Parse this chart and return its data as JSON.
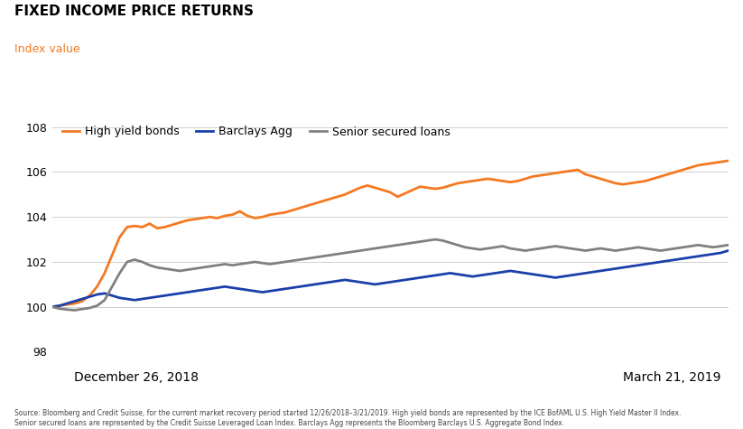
{
  "title": "FIXED INCOME PRICE RETURNS",
  "ylabel": "Index value",
  "ylabel_color": "#F47920",
  "ylim": [
    98,
    108.5
  ],
  "yticks": [
    98,
    100,
    102,
    104,
    106,
    108
  ],
  "xlabel_left": "December 26, 2018",
  "xlabel_right": "March 21, 2019",
  "source_text": "Source: Bloomberg and Credit Suisse, for the current market recovery period started 12/26/2018–3/21/2019. High yield bonds are represented by the ICE BofAML U.S. High Yield Master II Index.\nSenior secured loans are represented by the Credit Suisse Leveraged Loan Index. Barclays Agg represents the Bloomberg Barclays U.S. Aggregate Bond Index.",
  "legend_entries": [
    "High yield bonds",
    "Barclays Agg",
    "Senior secured loans"
  ],
  "legend_colors": [
    "#F47920",
    "#1A3FAA",
    "#808080"
  ],
  "line_colors": [
    "#F47920",
    "#1A3FAA",
    "#808080"
  ],
  "high_yield": [
    100.0,
    100.05,
    100.1,
    100.15,
    100.25,
    100.5,
    100.9,
    101.5,
    102.3,
    103.1,
    103.55,
    103.6,
    103.55,
    103.7,
    103.5,
    103.55,
    103.65,
    103.75,
    103.85,
    103.9,
    103.95,
    104.0,
    103.95,
    104.05,
    104.1,
    104.25,
    104.05,
    103.95,
    104.0,
    104.1,
    104.15,
    104.2,
    104.3,
    104.4,
    104.5,
    104.6,
    104.7,
    104.8,
    104.9,
    105.0,
    105.15,
    105.3,
    105.4,
    105.3,
    105.2,
    105.1,
    104.9,
    105.05,
    105.2,
    105.35,
    105.3,
    105.25,
    105.3,
    105.4,
    105.5,
    105.55,
    105.6,
    105.65,
    105.7,
    105.65,
    105.6,
    105.55,
    105.6,
    105.7,
    105.8,
    105.85,
    105.9,
    105.95,
    106.0,
    106.05,
    106.1,
    105.9,
    105.8,
    105.7,
    105.6,
    105.5,
    105.45,
    105.5,
    105.55,
    105.6,
    105.7,
    105.8,
    105.9,
    106.0,
    106.1,
    106.2,
    106.3,
    106.35,
    106.4,
    106.45,
    106.5
  ],
  "barclays": [
    100.0,
    100.05,
    100.15,
    100.25,
    100.35,
    100.45,
    100.55,
    100.6,
    100.5,
    100.4,
    100.35,
    100.3,
    100.35,
    100.4,
    100.45,
    100.5,
    100.55,
    100.6,
    100.65,
    100.7,
    100.75,
    100.8,
    100.85,
    100.9,
    100.85,
    100.8,
    100.75,
    100.7,
    100.65,
    100.7,
    100.75,
    100.8,
    100.85,
    100.9,
    100.95,
    101.0,
    101.05,
    101.1,
    101.15,
    101.2,
    101.15,
    101.1,
    101.05,
    101.0,
    101.05,
    101.1,
    101.15,
    101.2,
    101.25,
    101.3,
    101.35,
    101.4,
    101.45,
    101.5,
    101.45,
    101.4,
    101.35,
    101.4,
    101.45,
    101.5,
    101.55,
    101.6,
    101.55,
    101.5,
    101.45,
    101.4,
    101.35,
    101.3,
    101.35,
    101.4,
    101.45,
    101.5,
    101.55,
    101.6,
    101.65,
    101.7,
    101.75,
    101.8,
    101.85,
    101.9,
    101.95,
    102.0,
    102.05,
    102.1,
    102.15,
    102.2,
    102.25,
    102.3,
    102.35,
    102.4,
    102.5
  ],
  "senior_loans": [
    100.0,
    99.92,
    99.88,
    99.85,
    99.9,
    99.95,
    100.05,
    100.3,
    100.9,
    101.5,
    102.0,
    102.1,
    102.0,
    101.85,
    101.75,
    101.7,
    101.65,
    101.6,
    101.65,
    101.7,
    101.75,
    101.8,
    101.85,
    101.9,
    101.85,
    101.9,
    101.95,
    102.0,
    101.95,
    101.9,
    101.95,
    102.0,
    102.05,
    102.1,
    102.15,
    102.2,
    102.25,
    102.3,
    102.35,
    102.4,
    102.45,
    102.5,
    102.55,
    102.6,
    102.65,
    102.7,
    102.75,
    102.8,
    102.85,
    102.9,
    102.95,
    103.0,
    102.95,
    102.85,
    102.75,
    102.65,
    102.6,
    102.55,
    102.6,
    102.65,
    102.7,
    102.6,
    102.55,
    102.5,
    102.55,
    102.6,
    102.65,
    102.7,
    102.65,
    102.6,
    102.55,
    102.5,
    102.55,
    102.6,
    102.55,
    102.5,
    102.55,
    102.6,
    102.65,
    102.6,
    102.55,
    102.5,
    102.55,
    102.6,
    102.65,
    102.7,
    102.75,
    102.7,
    102.65,
    102.7,
    102.75
  ]
}
